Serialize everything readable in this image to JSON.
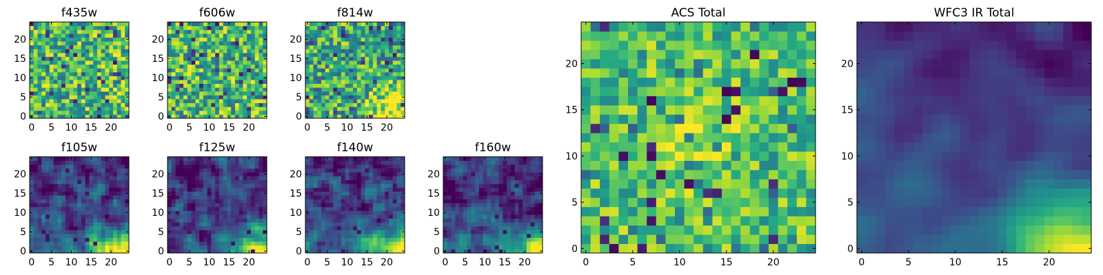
{
  "chart_data": {
    "type": "heatmap",
    "colormap": "viridis",
    "pixels_per_side": 25,
    "panels": [
      {
        "key": "f435w",
        "title": "f435w",
        "x_ticks": [
          0,
          5,
          10,
          15,
          20
        ],
        "y_ticks": [
          0,
          5,
          10,
          15,
          20
        ],
        "field": "noisy"
      },
      {
        "key": "f606w",
        "title": "f606w",
        "x_ticks": [
          0,
          5,
          10,
          15,
          20
        ],
        "y_ticks": [
          0,
          5,
          10,
          15,
          20
        ],
        "field": "noisy"
      },
      {
        "key": "f814w",
        "title": "f814w",
        "x_ticks": [
          0,
          5,
          10,
          15,
          20
        ],
        "y_ticks": [
          0,
          5,
          10,
          15,
          20
        ],
        "field": "noisy_corner"
      },
      {
        "key": "f105w",
        "title": "f105w",
        "x_ticks": [
          0,
          5,
          10,
          15,
          20
        ],
        "y_ticks": [
          0,
          5,
          10,
          15,
          20
        ],
        "field": "ir"
      },
      {
        "key": "f125w",
        "title": "f125w",
        "x_ticks": [
          0,
          5,
          10,
          15,
          20
        ],
        "y_ticks": [
          0,
          5,
          10,
          15,
          20
        ],
        "field": "ir"
      },
      {
        "key": "f140w",
        "title": "f140w",
        "x_ticks": [
          0,
          5,
          10,
          15,
          20
        ],
        "y_ticks": [
          0,
          5,
          10,
          15,
          20
        ],
        "field": "ir"
      },
      {
        "key": "f160w",
        "title": "f160w",
        "x_ticks": [
          0,
          5,
          10,
          15,
          20
        ],
        "y_ticks": [
          0,
          5,
          10,
          15,
          20
        ],
        "field": "ir_smooth"
      },
      {
        "key": "acs_total",
        "title": "ACS Total",
        "x_ticks": [
          0,
          5,
          10,
          15,
          20
        ],
        "y_ticks": [
          0,
          5,
          10,
          15,
          20
        ],
        "field": "acs_total"
      },
      {
        "key": "wfc3_ir_total",
        "title": "WFC3 IR Total",
        "x_ticks": [
          0,
          5,
          10,
          15,
          20
        ],
        "y_ticks": [
          0,
          5,
          10,
          15,
          20
        ],
        "field": "ir_total"
      }
    ]
  }
}
